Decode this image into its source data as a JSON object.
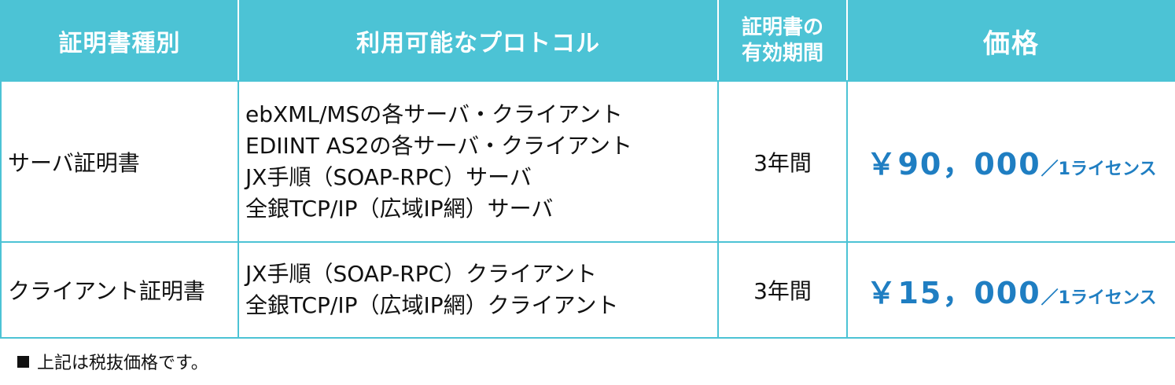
{
  "table": {
    "headers": {
      "type": "証明書種別",
      "protocols": "利用可能なプロトコル",
      "validity_line1": "証明書の",
      "validity_line2": "有効期間",
      "price": "価格"
    },
    "rows": [
      {
        "type": "サーバ証明書",
        "protocols": [
          "ebXML/MSの各サーバ・クライアント",
          "EDIINT AS2の各サーバ・クライアント",
          "JX手順（SOAP-RPC）サーバ",
          "全銀TCP/IP（広域IP網）サーバ"
        ],
        "validity": "3年間",
        "price_amount": "￥90，000",
        "price_unit": "／1ライセンス"
      },
      {
        "type": "クライアント証明書",
        "protocols": [
          "JX手順（SOAP-RPC）クライアント",
          "全銀TCP/IP（広域IP網）クライアント"
        ],
        "validity": "3年間",
        "price_amount": "￥15，000",
        "price_unit": "／1ライセンス"
      }
    ]
  },
  "footnote": {
    "bullet_icon": "black-square-icon",
    "text": "上記は税抜価格です。"
  },
  "colors": {
    "header_bg": "#4cc3d5",
    "header_text": "#ffffff",
    "price_text": "#1f7ec2",
    "border": "#4cc3d5"
  }
}
